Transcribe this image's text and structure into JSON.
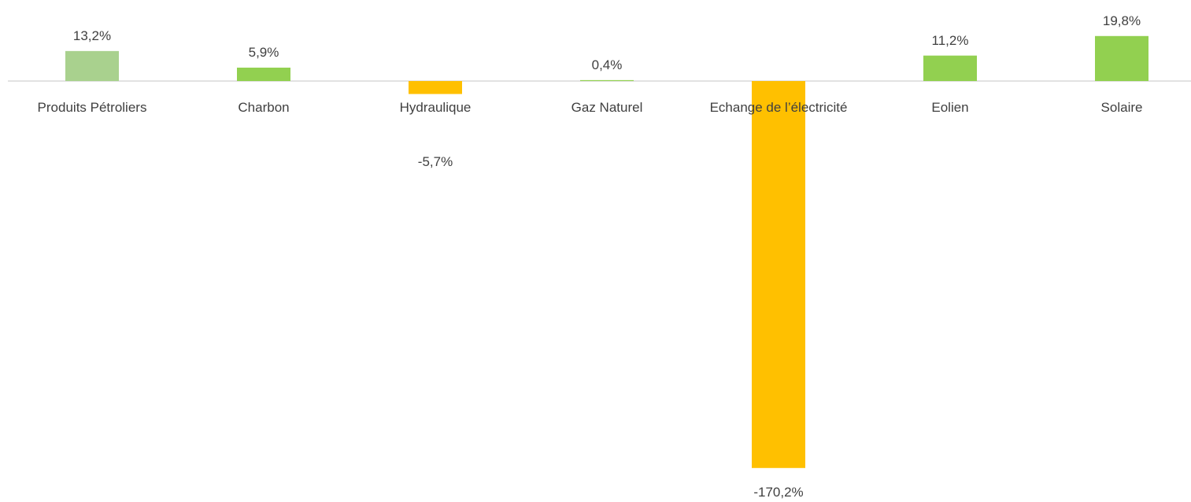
{
  "chart_data": {
    "type": "bar",
    "categories": [
      "Produits Pétroliers",
      "Charbon",
      "Hydraulique",
      "Gaz Naturel",
      "Echange de l’électricité",
      "Eolien",
      "Solaire"
    ],
    "values": [
      13.2,
      5.9,
      -5.7,
      0.4,
      -170.2,
      11.2,
      19.8
    ],
    "value_labels": [
      "13,2%",
      "5,9%",
      "-5,7%",
      "0,4%",
      "-170,2%",
      "11,2%",
      "19,8%"
    ],
    "colors": [
      "#a9d18e",
      "#92d050",
      "#ffc000",
      "#92d050",
      "#ffc000",
      "#92d050",
      "#92d050"
    ]
  }
}
